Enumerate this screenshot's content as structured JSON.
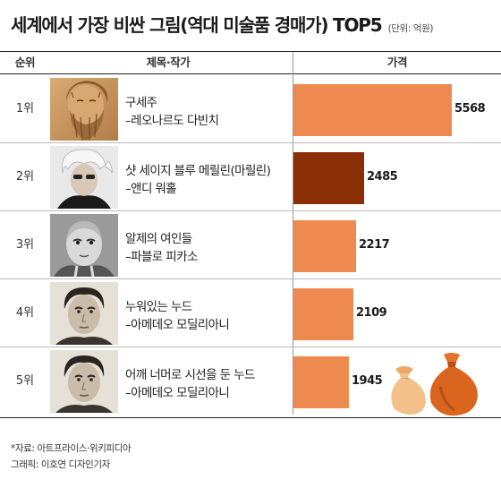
{
  "title": "세계에서 가장 비싼 그림(역대 미술품 경매가) TOP5",
  "unit_note": "(단위: 억원)",
  "headers": {
    "rank": "순위",
    "work": "제목·작가",
    "price": "가격"
  },
  "footer": {
    "source": "*자료: 아트프라이스·위키피디아",
    "credit": "그래픽: 이호연 디자인기자"
  },
  "colors": {
    "bar": "#ee8a4f",
    "bar_highlight": "#8a2e05",
    "bag_light": "#f3c08a",
    "bag_dark": "#c9591a"
  },
  "rows": [
    {
      "rank": "1위",
      "title": "구세주",
      "artist": "–레오나르도 다빈치",
      "value_label": "5568",
      "photo_icon": "portrait-da-vinci-icon"
    },
    {
      "rank": "2위",
      "title": "샷 세이지 블루 메릴린(마릴린)",
      "artist": "–앤디 워홀",
      "value_label": "2485",
      "photo_icon": "portrait-warhol-icon"
    },
    {
      "rank": "3위",
      "title": "알제의 여인들",
      "artist": "–파블로 피카소",
      "value_label": "2217",
      "photo_icon": "portrait-picasso-icon"
    },
    {
      "rank": "4위",
      "title": "누워있는 누드",
      "artist": "–아메데오 모딜리아니",
      "value_label": "2109",
      "photo_icon": "portrait-modigliani-icon"
    },
    {
      "rank": "5위",
      "title": "어깨 너머로 시선을 둔 누드",
      "artist": "–아메데오 모딜리아니",
      "value_label": "1945",
      "photo_icon": "portrait-modigliani-icon"
    }
  ],
  "chart_data": {
    "type": "bar",
    "orientation": "horizontal",
    "title": "세계에서 가장 비싼 그림(역대 미술품 경매가) TOP5",
    "categories": [
      "구세주",
      "샷 세이지 블루 메릴린(마릴린)",
      "알제의 여인들",
      "누워있는 누드",
      "어깨 너머로 시선을 둔 누드"
    ],
    "values": [
      5568,
      2485,
      2217,
      2109,
      1945
    ],
    "unit": "억원",
    "highlight_index": 1,
    "xlim": [
      0,
      6000
    ]
  }
}
